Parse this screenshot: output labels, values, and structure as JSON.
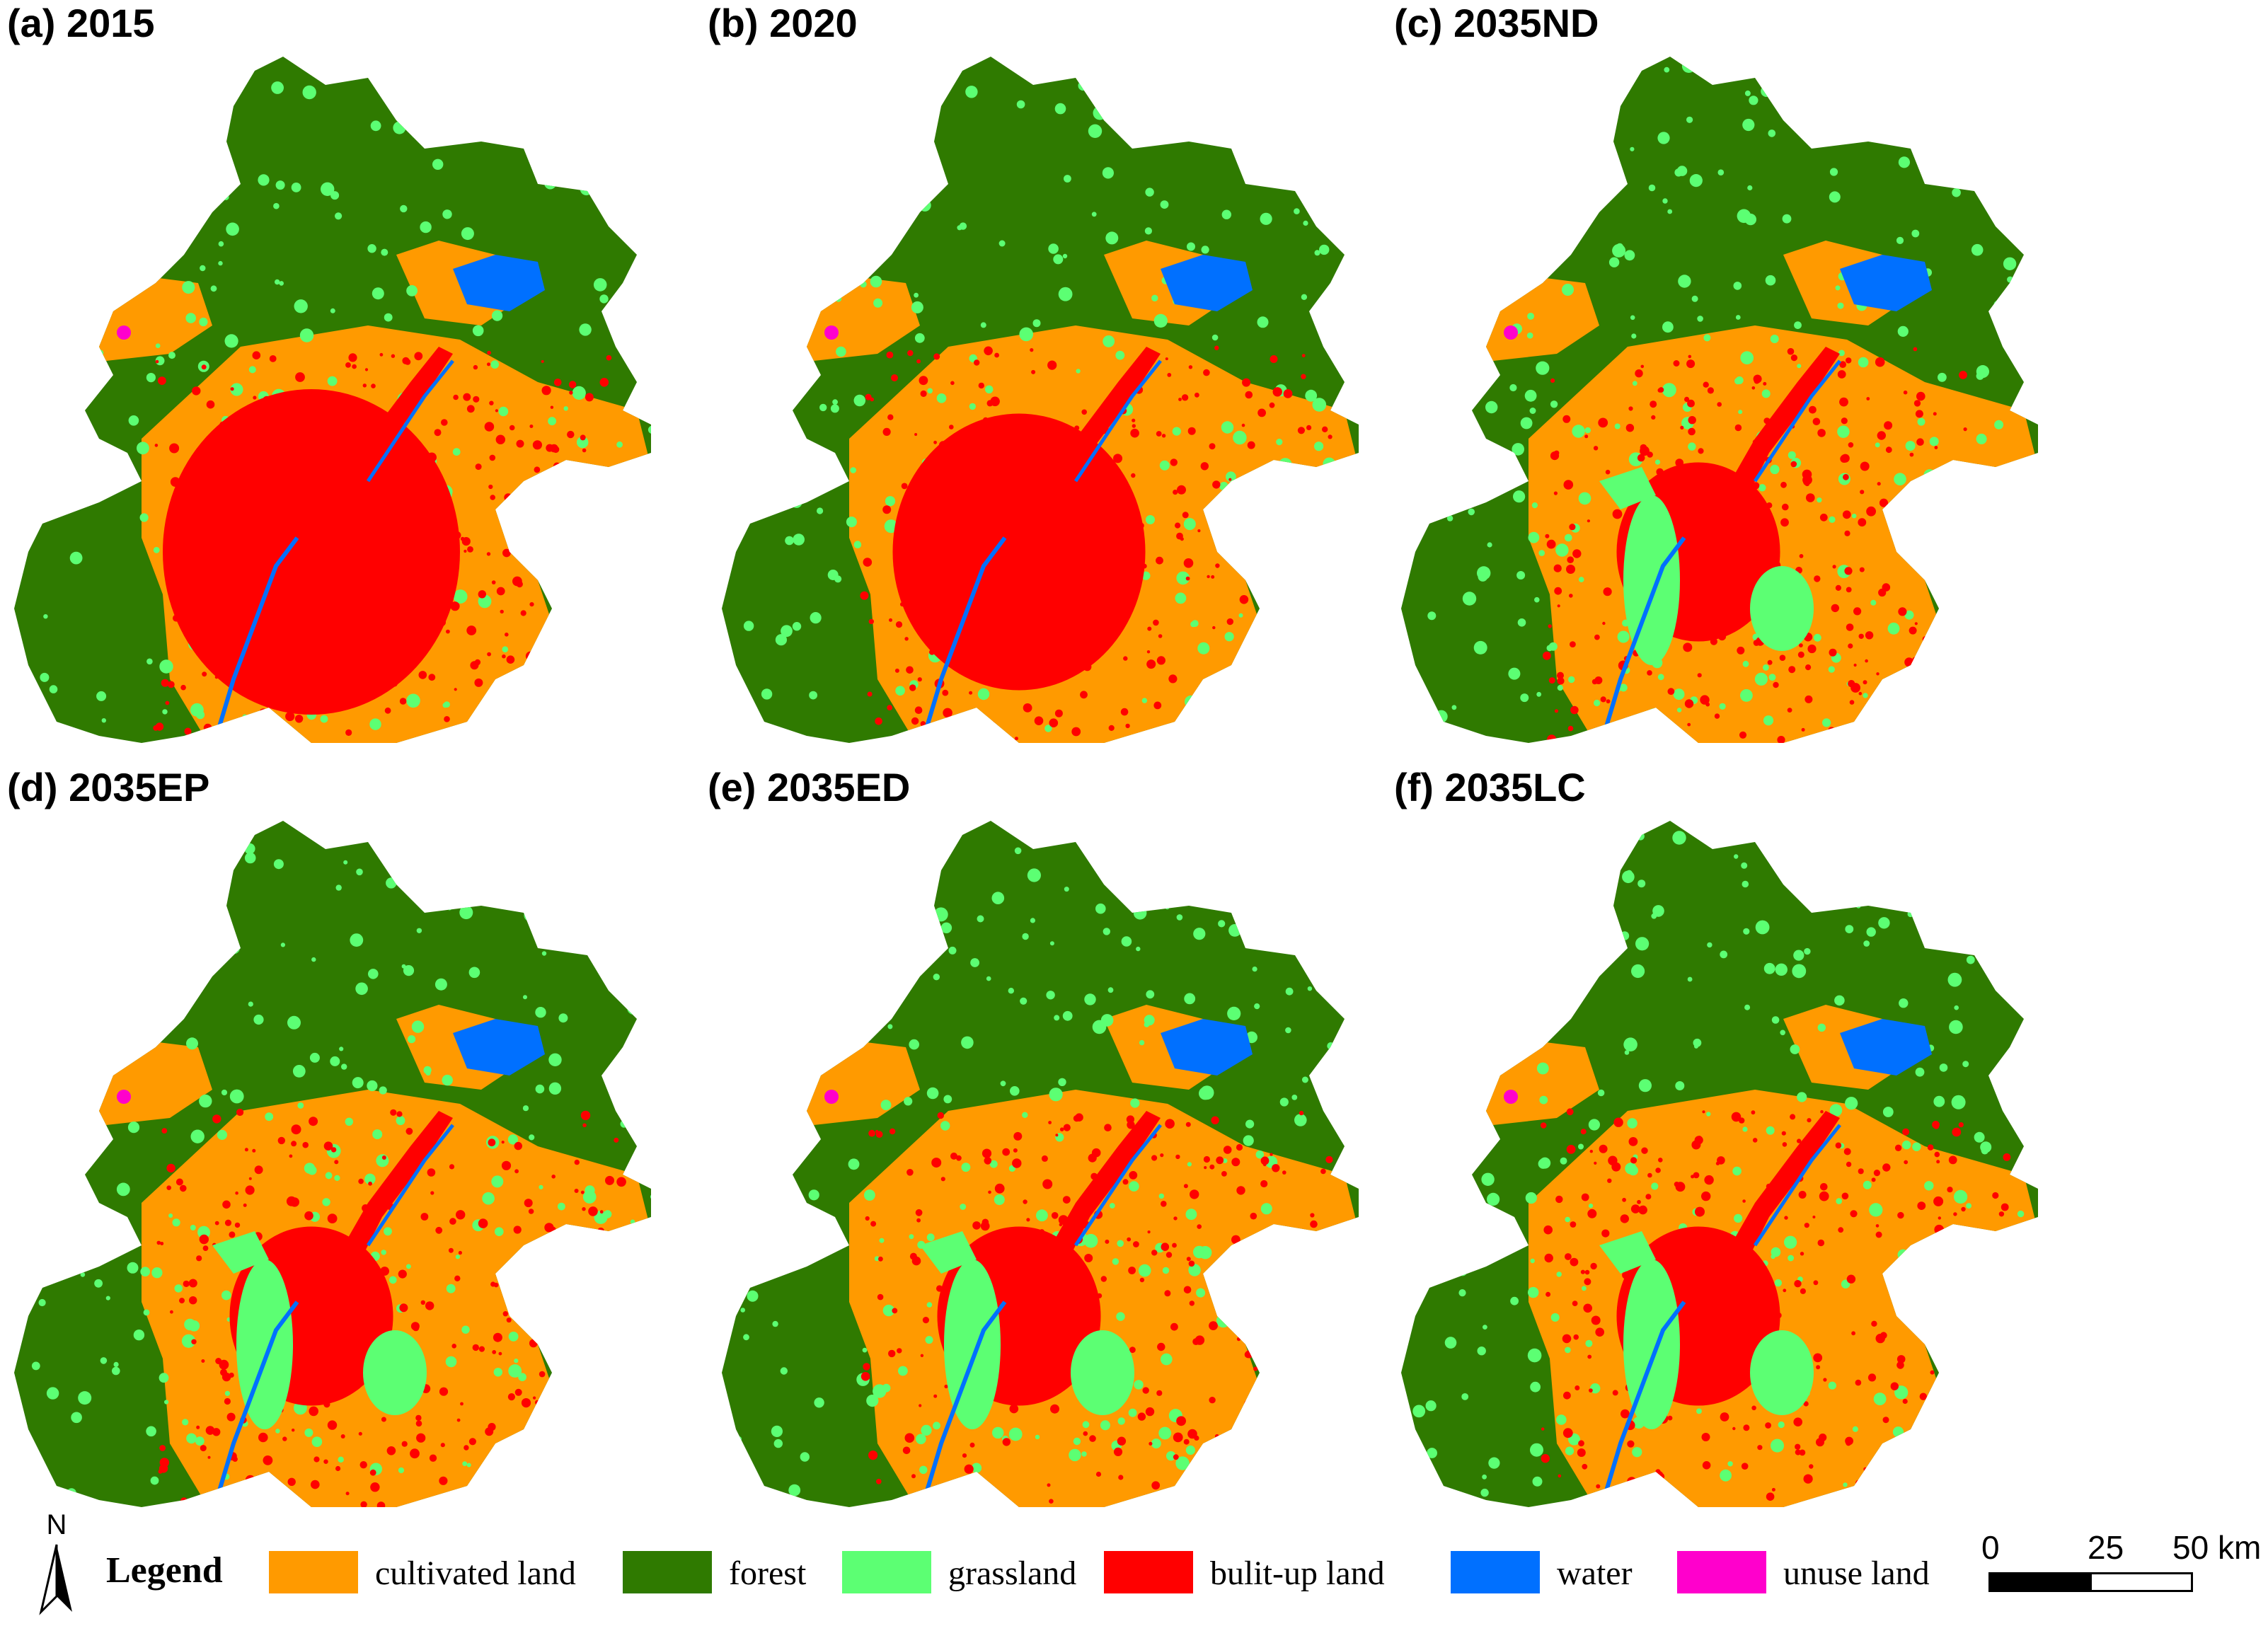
{
  "panels": [
    {
      "label": "(a) 2015",
      "builtup_scale": 1.0,
      "grass_extra": 0.05
    },
    {
      "label": "(b) 2020",
      "builtup_scale": 0.85,
      "grass_extra": 0.08
    },
    {
      "label": "(c) 2035ND",
      "builtup_scale": 0.55,
      "grass_extra": 0.25
    },
    {
      "label": "(d) 2035EP",
      "builtup_scale": 0.55,
      "grass_extra": 0.22
    },
    {
      "label": "(e) 2035ED",
      "builtup_scale": 0.55,
      "grass_extra": 0.22
    },
    {
      "label": "(f) 2035LC",
      "builtup_scale": 0.55,
      "grass_extra": 0.22
    }
  ],
  "legend": {
    "title": "Legend",
    "north_label": "N",
    "items": [
      {
        "label": "cultivated land",
        "color": "#ff9a00"
      },
      {
        "label": "forest",
        "color": "#2f7a00"
      },
      {
        "label": "grassland",
        "color": "#5cff73"
      },
      {
        "label": "bulit-up land",
        "color": "#ff0000"
      },
      {
        "label": "water",
        "color": "#0070ff"
      },
      {
        "label": "unuse land",
        "color": "#ff00cc"
      }
    ]
  },
  "scale_bar": {
    "ticks": [
      "0",
      "25",
      "50 km"
    ]
  }
}
